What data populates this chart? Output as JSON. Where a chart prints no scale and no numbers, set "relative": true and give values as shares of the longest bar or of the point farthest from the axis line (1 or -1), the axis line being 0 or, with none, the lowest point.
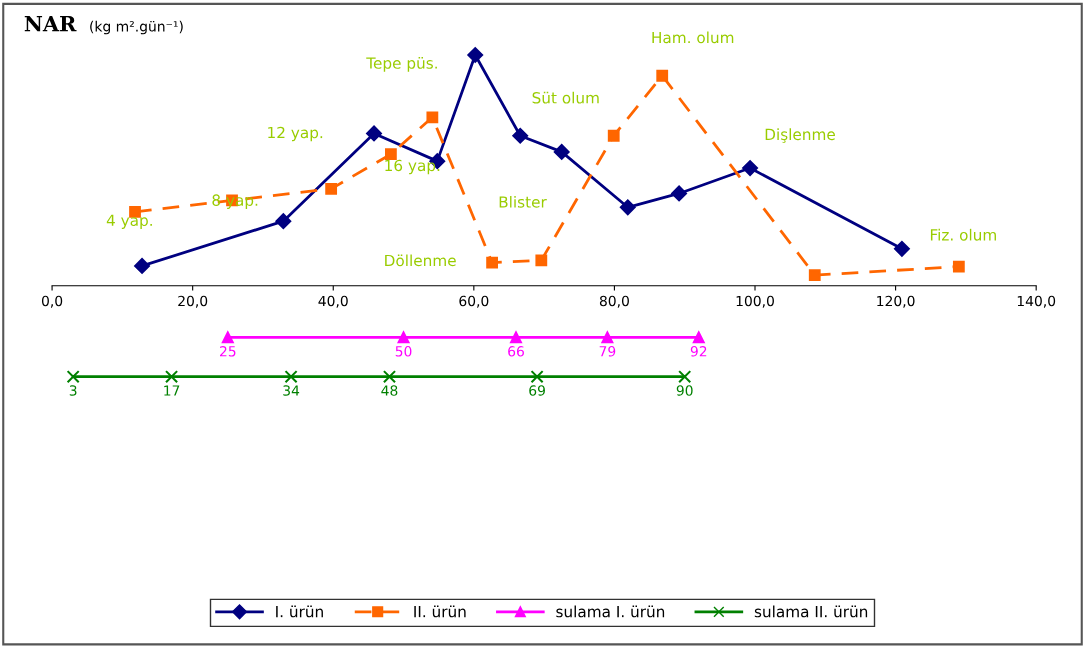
{
  "chart_data": {
    "type": "line",
    "title": "NAR",
    "subtitle": "(kg m².gün⁻¹)",
    "relative": true,
    "xlim": [
      0,
      140
    ],
    "xticks": [
      {
        "value": 0,
        "label": "0,0"
      },
      {
        "value": 20,
        "label": "20,0"
      },
      {
        "value": 40,
        "label": "40,0"
      },
      {
        "value": 60,
        "label": "60,0"
      },
      {
        "value": 80,
        "label": "80,0"
      },
      {
        "value": 100,
        "label": "100,0"
      },
      {
        "value": 120,
        "label": "120,0"
      },
      {
        "value": 140,
        "label": "140,0"
      }
    ],
    "tick_labels": "x",
    "grid": false,
    "legend": "bottom",
    "series": [
      {
        "name": "I. ürün",
        "color": "#000080",
        "marker": "diamond",
        "line_style": "solid",
        "x": [
          12.8,
          32.9,
          45.8,
          54.8,
          60.2,
          66.6,
          72.5,
          81.9,
          89.2,
          99.3,
          120.9
        ],
        "values": [
          0.086,
          0.28,
          0.66,
          0.54,
          1,
          0.65,
          0.58,
          0.34,
          0.4,
          0.51,
          0.16
        ]
      },
      {
        "name": "II. ürün",
        "color": "#ff6600",
        "marker": "square",
        "line_style": "dashed",
        "x": [
          11.8,
          25.6,
          39.7,
          48.2,
          54.1,
          62.6,
          69.6,
          79.9,
          86.8,
          108.5,
          129.0
        ],
        "values": [
          0.32,
          0.37,
          0.42,
          0.57,
          0.73,
          0.1,
          0.11,
          0.65,
          0.91,
          0.046,
          0.083
        ]
      },
      {
        "name": "sulama I. ürün",
        "color": "#ff00ff",
        "marker": "triangle",
        "line_style": "solid",
        "x": [
          25,
          50,
          66,
          79,
          92
        ],
        "values": [
          -0.224,
          -0.224,
          -0.224,
          -0.224,
          -0.224
        ]
      },
      {
        "name": "sulama II. ürün",
        "color": "#008000",
        "marker": "cross",
        "line_style": "solid",
        "x": [
          3,
          17,
          34,
          48,
          69,
          90
        ],
        "values": [
          -0.394,
          -0.394,
          -0.394,
          -0.394,
          -0.394,
          -0.394
        ]
      }
    ],
    "annotations": [
      "4 yap.",
      "8 yap.",
      "12 yap.",
      "16 yap.",
      "Tepe püs.",
      "Döllenme",
      "Blister",
      "Süt olum",
      "Ham. olum",
      "Dişlenme",
      "Fiz. olum",
      {
        "text": "25",
        "x": 25,
        "y": -0.224
      },
      {
        "text": "50",
        "x": 50,
        "y": -0.224
      },
      {
        "text": "66",
        "x": 66,
        "y": -0.224
      },
      {
        "text": "79",
        "x": 79,
        "y": -0.224
      },
      {
        "text": "92",
        "x": 92,
        "y": -0.224
      },
      {
        "text": "3",
        "x": 3,
        "y": -0.394
      },
      {
        "text": "17",
        "x": 17,
        "y": -0.394
      },
      {
        "text": "34",
        "x": 34,
        "y": -0.394
      },
      {
        "text": "48",
        "x": 48,
        "y": -0.394
      },
      {
        "text": "69",
        "x": 69,
        "y": -0.394
      },
      {
        "text": "90",
        "x": 90,
        "y": -0.394
      }
    ]
  }
}
